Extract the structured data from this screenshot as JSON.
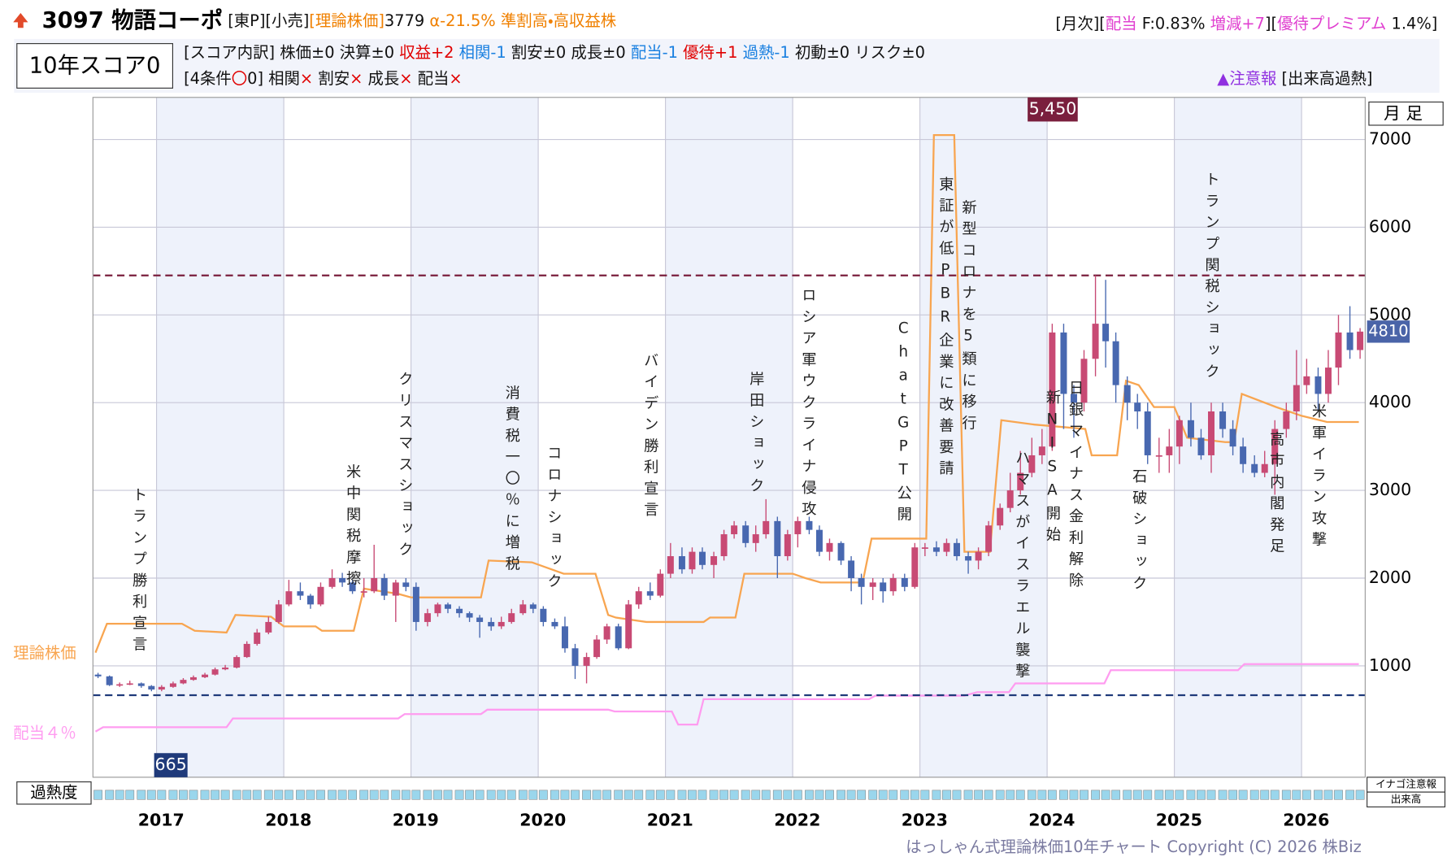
{
  "header": {
    "title": "3097 物語コーポ",
    "line1": [
      {
        "text": " [東P][小売]",
        "color": "#111"
      },
      {
        "text": "[理論株価]",
        "color": "#f08000"
      },
      {
        "text": "3779",
        "color": "#111"
      },
      {
        "text": " α-21.5% 準割高・高収益株",
        "color": "#f08000"
      }
    ],
    "line1_right": [
      {
        "text": "[月次][",
        "color": "#111"
      },
      {
        "text": "配当",
        "color": "#e040d0"
      },
      {
        "text": " F:0.83% ",
        "color": "#111"
      },
      {
        "text": "増減+7",
        "color": "#e040d0"
      },
      {
        "text": "][",
        "color": "#111"
      },
      {
        "text": "優待プレミアム",
        "color": "#e040d0"
      },
      {
        "text": " 1.4%]",
        "color": "#111"
      }
    ],
    "score": "10年スコア0",
    "line2": [
      {
        "text": "[スコア内訳] 株価±0 決算±0 ",
        "color": "#111"
      },
      {
        "text": "収益+2 ",
        "color": "#e00000"
      },
      {
        "text": "相関-1",
        "color": "#1a80e0"
      },
      {
        "text": " 割安±0 成長±0 ",
        "color": "#111"
      },
      {
        "text": "配当-1 ",
        "color": "#1a80e0"
      },
      {
        "text": "優待+1 ",
        "color": "#e00000"
      },
      {
        "text": "過熱-1",
        "color": "#1a80e0"
      },
      {
        "text": " 初動±0 リスク±0",
        "color": "#111"
      }
    ],
    "line3": [
      {
        "text": "[4条件",
        "color": "#111"
      },
      {
        "text": "〇",
        "color": "#e00000"
      },
      {
        "text": "0] 相関",
        "color": "#111"
      },
      {
        "text": "×",
        "color": "#e00000"
      },
      {
        "text": " 割安",
        "color": "#111"
      },
      {
        "text": "×",
        "color": "#e00000"
      },
      {
        "text": " 成長",
        "color": "#111"
      },
      {
        "text": "×",
        "color": "#e00000"
      },
      {
        "text": " 配当",
        "color": "#111"
      },
      {
        "text": "×",
        "color": "#e00000"
      }
    ],
    "alert": [
      {
        "text": "▲注意報",
        "color": "#9030e0"
      },
      {
        "text": " [出来高過熱]",
        "color": "#111"
      }
    ]
  },
  "chart_data": {
    "type": "candlestick",
    "period_label": "月足",
    "up_color": "#c84a74",
    "down_color": "#4868b0",
    "x": [
      2016.54,
      2016.63,
      2016.71,
      2016.79,
      2016.88,
      2016.96,
      2017.04,
      2017.13,
      2017.21,
      2017.29,
      2017.38,
      2017.46,
      2017.54,
      2017.63,
      2017.71,
      2017.79,
      2017.88,
      2017.96,
      2018.04,
      2018.13,
      2018.21,
      2018.29,
      2018.38,
      2018.46,
      2018.54,
      2018.63,
      2018.71,
      2018.79,
      2018.88,
      2018.96,
      2019.04,
      2019.13,
      2019.21,
      2019.29,
      2019.38,
      2019.46,
      2019.54,
      2019.63,
      2019.71,
      2019.79,
      2019.88,
      2019.96,
      2020.04,
      2020.13,
      2020.21,
      2020.29,
      2020.38,
      2020.46,
      2020.54,
      2020.63,
      2020.71,
      2020.79,
      2020.88,
      2020.96,
      2021.04,
      2021.13,
      2021.21,
      2021.29,
      2021.38,
      2021.46,
      2021.54,
      2021.63,
      2021.71,
      2021.79,
      2021.88,
      2021.96,
      2022.04,
      2022.13,
      2022.21,
      2022.29,
      2022.38,
      2022.46,
      2022.54,
      2022.63,
      2022.71,
      2022.79,
      2022.88,
      2022.96,
      2023.04,
      2023.13,
      2023.21,
      2023.29,
      2023.38,
      2023.46,
      2023.54,
      2023.63,
      2023.71,
      2023.79,
      2023.88,
      2023.96,
      2024.04,
      2024.13,
      2024.21,
      2024.29,
      2024.38,
      2024.46,
      2024.54,
      2024.63,
      2024.71,
      2024.79,
      2024.88,
      2024.96,
      2025.04,
      2025.13,
      2025.21,
      2025.29,
      2025.38,
      2025.46,
      2025.54,
      2025.63,
      2025.71,
      2025.79,
      2025.88,
      2025.96,
      2026.04,
      2026.13,
      2026.21,
      2026.29,
      2026.38,
      2026.46
    ],
    "open": [
      900,
      880,
      780,
      790,
      800,
      770,
      730,
      760,
      800,
      840,
      870,
      900,
      960,
      980,
      1100,
      1250,
      1380,
      1500,
      1700,
      1850,
      1800,
      1700,
      1900,
      2000,
      1950,
      1850,
      1850,
      2000,
      1800,
      1950,
      1900,
      1500,
      1600,
      1700,
      1650,
      1600,
      1550,
      1500,
      1450,
      1500,
      1600,
      1700,
      1650,
      1500,
      1450,
      1200,
      1000,
      1100,
      1300,
      1450,
      1200,
      1700,
      1850,
      1800,
      2050,
      2250,
      2100,
      2300,
      2150,
      2250,
      2500,
      2600,
      2400,
      2500,
      2650,
      2250,
      2500,
      2650,
      2550,
      2300,
      2400,
      2200,
      2000,
      1900,
      1950,
      1850,
      2000,
      1900,
      2350,
      2350,
      2300,
      2400,
      2250,
      2200,
      2300,
      2600,
      2800,
      3000,
      3200,
      3400,
      3500,
      4800,
      4100,
      4000,
      4500,
      4900,
      4700,
      4200,
      4000,
      3900,
      3400,
      3400,
      3500,
      3800,
      3600,
      3400,
      3900,
      3700,
      3500,
      3300,
      3200,
      3300,
      3700,
      3900,
      4200,
      4300,
      4100,
      4400,
      4800,
      4600
    ],
    "high": [
      920,
      890,
      810,
      830,
      810,
      780,
      780,
      820,
      860,
      890,
      920,
      980,
      1010,
      1120,
      1280,
      1420,
      1560,
      1750,
      1980,
      1950,
      1820,
      1950,
      2100,
      2060,
      1980,
      2000,
      2380,
      2050,
      1980,
      2000,
      1950,
      1650,
      1720,
      1720,
      1680,
      1620,
      1580,
      1550,
      1560,
      1650,
      1750,
      1720,
      1680,
      1540,
      1560,
      1250,
      1150,
      1350,
      1480,
      1480,
      1750,
      1900,
      1950,
      2100,
      2400,
      2350,
      2350,
      2350,
      2300,
      2550,
      2650,
      2650,
      2600,
      2900,
      2700,
      2550,
      2700,
      2700,
      2600,
      2450,
      2420,
      2250,
      2050,
      2000,
      2000,
      2050,
      2050,
      2400,
      2400,
      2420,
      2450,
      2450,
      2300,
      2350,
      2650,
      2850,
      3200,
      3450,
      3600,
      3700,
      4900,
      4900,
      4200,
      4600,
      5450,
      5400,
      4800,
      4300,
      4100,
      4000,
      3600,
      3700,
      3850,
      4000,
      3700,
      4000,
      4000,
      3800,
      3600,
      3400,
      3450,
      3800,
      4000,
      4600,
      4500,
      4400,
      4600,
      5000,
      5100,
      4850
    ],
    "low": [
      860,
      770,
      760,
      780,
      750,
      710,
      710,
      750,
      790,
      830,
      860,
      890,
      950,
      970,
      1090,
      1230,
      1360,
      1480,
      1680,
      1750,
      1650,
      1680,
      1880,
      1900,
      1820,
      1780,
      1830,
      1750,
      1500,
      1850,
      1400,
      1450,
      1560,
      1600,
      1550,
      1500,
      1320,
      1400,
      1420,
      1480,
      1580,
      1600,
      1450,
      1420,
      1150,
      850,
      800,
      1080,
      1250,
      1180,
      1190,
      1650,
      1750,
      1780,
      2000,
      2050,
      2050,
      2100,
      2000,
      2200,
      2450,
      2350,
      2300,
      2450,
      2000,
      2200,
      2350,
      2500,
      2250,
      2200,
      2150,
      1850,
      1700,
      1750,
      1720,
      1800,
      1850,
      1880,
      2250,
      2250,
      2250,
      2200,
      2050,
      2100,
      2250,
      2550,
      2750,
      2950,
      3150,
      3300,
      3450,
      3700,
      3600,
      3900,
      4300,
      4400,
      4000,
      3800,
      3700,
      3300,
      3200,
      3200,
      3300,
      3500,
      3350,
      3200,
      3600,
      3400,
      3200,
      3150,
      3150,
      2950,
      3600,
      3800,
      4100,
      3900,
      4000,
      4200,
      4500,
      4500
    ],
    "close": [
      880,
      780,
      790,
      800,
      770,
      730,
      760,
      800,
      840,
      870,
      900,
      960,
      980,
      1100,
      1250,
      1380,
      1500,
      1700,
      1850,
      1800,
      1700,
      1900,
      2000,
      1950,
      1850,
      1850,
      2000,
      1800,
      1950,
      1900,
      1500,
      1600,
      1700,
      1650,
      1600,
      1550,
      1500,
      1450,
      1500,
      1600,
      1700,
      1650,
      1500,
      1450,
      1200,
      1000,
      1100,
      1300,
      1450,
      1200,
      1700,
      1850,
      1800,
      2050,
      2250,
      2100,
      2300,
      2150,
      2250,
      2500,
      2600,
      2400,
      2500,
      2650,
      2250,
      2500,
      2650,
      2550,
      2300,
      2400,
      2200,
      2000,
      1900,
      1950,
      1850,
      2000,
      1900,
      2350,
      2350,
      2300,
      2400,
      2250,
      2200,
      2300,
      2600,
      2800,
      3000,
      3200,
      3400,
      3500,
      4800,
      4100,
      4000,
      4500,
      4900,
      4700,
      4200,
      4000,
      3900,
      3400,
      3400,
      3500,
      3800,
      3600,
      3400,
      3900,
      3700,
      3500,
      3300,
      3200,
      3300,
      3700,
      3900,
      4200,
      4300,
      4100,
      4400,
      4800,
      4600,
      4810
    ],
    "lines": [
      {
        "name": "理論株価",
        "color": "#f8a550",
        "x": [
          2016.52,
          2016.61,
          2017.2,
          2017.3,
          2017.55,
          2017.62,
          2017.9,
          2018.0,
          2018.25,
          2018.3,
          2018.55,
          2018.63,
          2018.9,
          2019.0,
          2019.55,
          2019.61,
          2019.95,
          2020.2,
          2020.45,
          2020.55,
          2020.61,
          2020.85,
          2021.3,
          2021.35,
          2021.55,
          2021.62,
          2022.0,
          2022.1,
          2022.22,
          2022.55,
          2022.62,
          2023.05,
          2023.11,
          2023.27,
          2023.35,
          2023.55,
          2023.64,
          2023.9,
          2024.3,
          2024.35,
          2024.55,
          2024.62,
          2024.72,
          2024.84,
          2025.0,
          2025.1,
          2025.4,
          2025.47,
          2025.53,
          2025.8,
          2026.0,
          2026.2,
          2026.45
        ],
        "values": [
          1150,
          1480,
          1480,
          1400,
          1380,
          1580,
          1560,
          1450,
          1450,
          1400,
          1400,
          1880,
          1820,
          1780,
          1780,
          2200,
          2180,
          2050,
          2050,
          1580,
          1550,
          1500,
          1500,
          1550,
          1550,
          2050,
          2050,
          2000,
          1950,
          1950,
          2450,
          2450,
          7050,
          7050,
          2300,
          2300,
          3800,
          3750,
          3700,
          3400,
          3400,
          4250,
          4200,
          3950,
          3950,
          3600,
          3550,
          3550,
          4100,
          3950,
          3850,
          3780,
          3780
        ]
      },
      {
        "name": "配当４％",
        "color": "#ff9cf0",
        "x": [
          2016.52,
          2016.58,
          2017.55,
          2017.6,
          2018.9,
          2018.95,
          2019.55,
          2019.6,
          2020.55,
          2020.6,
          2021.05,
          2021.1,
          2021.25,
          2021.3,
          2022.6,
          2022.65,
          2023.35,
          2023.45,
          2023.7,
          2023.75,
          2024.45,
          2024.5,
          2025.5,
          2025.55,
          2026.45
        ],
        "values": [
          250,
          300,
          300,
          400,
          400,
          450,
          450,
          500,
          500,
          480,
          480,
          330,
          330,
          620,
          620,
          660,
          660,
          700,
          700,
          800,
          800,
          950,
          950,
          1020,
          1020
        ]
      }
    ],
    "hlines": [
      {
        "value": 5450,
        "label": "5,450",
        "color": "#7a1f3d"
      },
      {
        "value": 665,
        "color": "#1f3a7a"
      }
    ],
    "annotations": [
      {
        "x": 2016.86,
        "text": "トランプ勝利宣言"
      },
      {
        "x": 2018.54,
        "text": "米中関税摩擦"
      },
      {
        "x": 2018.95,
        "text": "クリスマスショック"
      },
      {
        "x": 2019.79,
        "text": "消費税一〇％に増税"
      },
      {
        "x": 2020.12,
        "text": "コロナショック"
      },
      {
        "x": 2020.88,
        "text": "バイデン勝利宣言"
      },
      {
        "x": 2021.71,
        "text": "岸田ショック"
      },
      {
        "x": 2022.12,
        "text": "ロシア軍ウクライナ侵攻"
      },
      {
        "x": 2022.87,
        "text": "ChatGPT公開"
      },
      {
        "x": 2023.2,
        "text": "東証が低PBR企業に改善要請"
      },
      {
        "x": 2023.38,
        "text": "新型コロナを5類に移行"
      },
      {
        "x": 2023.8,
        "text": "ハマスがイスラエル襲撃"
      },
      {
        "x": 2024.04,
        "text": "新NISA開始"
      },
      {
        "x": 2024.22,
        "text": "日銀マイナス金利解除"
      },
      {
        "x": 2024.72,
        "text": "石破ショック"
      },
      {
        "x": 2025.29,
        "text": "トランプ関税ショック"
      },
      {
        "x": 2025.8,
        "text": "高市内閣発足"
      },
      {
        "x": 2026.13,
        "text": "米軍イラン攻撃"
      }
    ],
    "xlim": [
      2016.5,
      2026.5
    ],
    "xticks": [
      2017,
      2018,
      2019,
      2020,
      2021,
      2022,
      2023,
      2024,
      2025,
      2026
    ],
    "ylim": [
      -270,
      7480
    ],
    "yticks": [
      1000,
      2000,
      3000,
      4000,
      5000,
      6000,
      7000
    ],
    "grid": true,
    "overheat_label": "過熱度",
    "inago_label": "イナゴ注意報",
    "volume_label": "出来高"
  },
  "footer": "はっしゃん式理論株価10年チャート Copyright (C) 2026 株Biz"
}
